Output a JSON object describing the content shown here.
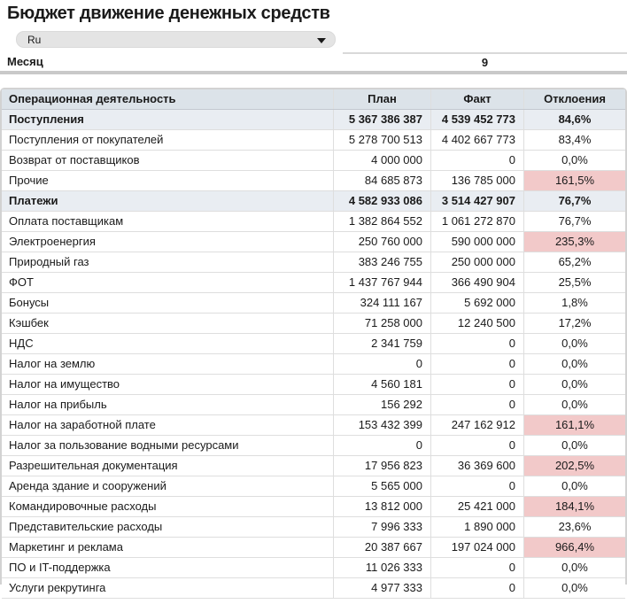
{
  "page": {
    "title": "Бюджет движение денежных средств"
  },
  "language_dropdown": {
    "value": "Ru",
    "icon": "chevron-down-icon"
  },
  "month_filter": {
    "label": "Месяц",
    "value": "9"
  },
  "colors": {
    "header_bg": "#dce3e9",
    "section_row_bg": "#e9edf2",
    "highlight_bg": "#f2c9c9",
    "divider": "#c9c9c9",
    "dropdown_bg": "#e4e4e4"
  },
  "table": {
    "headers": {
      "activity": "Операционная деятельность",
      "plan": "План",
      "fact": "Факт",
      "deviation": "Отклоения"
    },
    "rows": [
      {
        "label": "Поступления",
        "plan": "5 367 386 387",
        "fact": "4 539 452 773",
        "deviation": "84,6%",
        "section": true,
        "highlight": false
      },
      {
        "label": "Поступления от покупателей",
        "plan": "5 278 700 513",
        "fact": "4 402 667 773",
        "deviation": "83,4%",
        "section": false,
        "highlight": false
      },
      {
        "label": "Возврат от поставщиков",
        "plan": "4 000 000",
        "fact": "0",
        "deviation": "0,0%",
        "section": false,
        "highlight": false
      },
      {
        "label": "Прочие",
        "plan": "84 685 873",
        "fact": "136 785 000",
        "deviation": "161,5%",
        "section": false,
        "highlight": true
      },
      {
        "label": "Платежи",
        "plan": "4 582 933 086",
        "fact": "3 514 427 907",
        "deviation": "76,7%",
        "section": true,
        "highlight": false
      },
      {
        "label": "Оплата поставщикам",
        "plan": "1 382 864 552",
        "fact": "1 061 272 870",
        "deviation": "76,7%",
        "section": false,
        "highlight": false
      },
      {
        "label": "Электроенергия",
        "plan": "250 760 000",
        "fact": "590 000 000",
        "deviation": "235,3%",
        "section": false,
        "highlight": true
      },
      {
        "label": "Природный газ",
        "plan": "383 246 755",
        "fact": "250 000 000",
        "deviation": "65,2%",
        "section": false,
        "highlight": false
      },
      {
        "label": "ФОТ",
        "plan": "1 437 767 944",
        "fact": "366 490 904",
        "deviation": "25,5%",
        "section": false,
        "highlight": false
      },
      {
        "label": "Бонусы",
        "plan": "324 111 167",
        "fact": "5 692 000",
        "deviation": "1,8%",
        "section": false,
        "highlight": false
      },
      {
        "label": "Кэшбек",
        "plan": "71 258 000",
        "fact": "12 240 500",
        "deviation": "17,2%",
        "section": false,
        "highlight": false
      },
      {
        "label": "НДС",
        "plan": "2 341 759",
        "fact": "0",
        "deviation": "0,0%",
        "section": false,
        "highlight": false
      },
      {
        "label": "Налог на землю",
        "plan": "0",
        "fact": "0",
        "deviation": "0,0%",
        "section": false,
        "highlight": false
      },
      {
        "label": "Налог на имущество",
        "plan": "4 560 181",
        "fact": "0",
        "deviation": "0,0%",
        "section": false,
        "highlight": false
      },
      {
        "label": "Налог на прибыль",
        "plan": "156 292",
        "fact": "0",
        "deviation": "0,0%",
        "section": false,
        "highlight": false
      },
      {
        "label": "Налог на заработной плате",
        "plan": "153 432 399",
        "fact": "247 162 912",
        "deviation": "161,1%",
        "section": false,
        "highlight": true
      },
      {
        "label": "Налог за пользование водными ресурсами",
        "plan": "0",
        "fact": "0",
        "deviation": "0,0%",
        "section": false,
        "highlight": false
      },
      {
        "label": "Разрешительная документация",
        "plan": "17 956 823",
        "fact": "36 369 600",
        "deviation": "202,5%",
        "section": false,
        "highlight": true
      },
      {
        "label": "Аренда здание и сооружений",
        "plan": "5 565 000",
        "fact": "0",
        "deviation": "0,0%",
        "section": false,
        "highlight": false
      },
      {
        "label": "Командировочные расходы",
        "plan": "13 812 000",
        "fact": "25 421 000",
        "deviation": "184,1%",
        "section": false,
        "highlight": true
      },
      {
        "label": "Представительские расходы",
        "plan": "7 996 333",
        "fact": "1 890 000",
        "deviation": "23,6%",
        "section": false,
        "highlight": false
      },
      {
        "label": "Маркетинг и реклама",
        "plan": "20 387 667",
        "fact": "197 024 000",
        "deviation": "966,4%",
        "section": false,
        "highlight": true
      },
      {
        "label": "ПО и IT-поддержка",
        "plan": "11 026 333",
        "fact": "0",
        "deviation": "0,0%",
        "section": false,
        "highlight": false
      },
      {
        "label": "Услуги рекрутинга",
        "plan": "4 977 333",
        "fact": "0",
        "deviation": "0,0%",
        "section": false,
        "highlight": false
      }
    ]
  }
}
